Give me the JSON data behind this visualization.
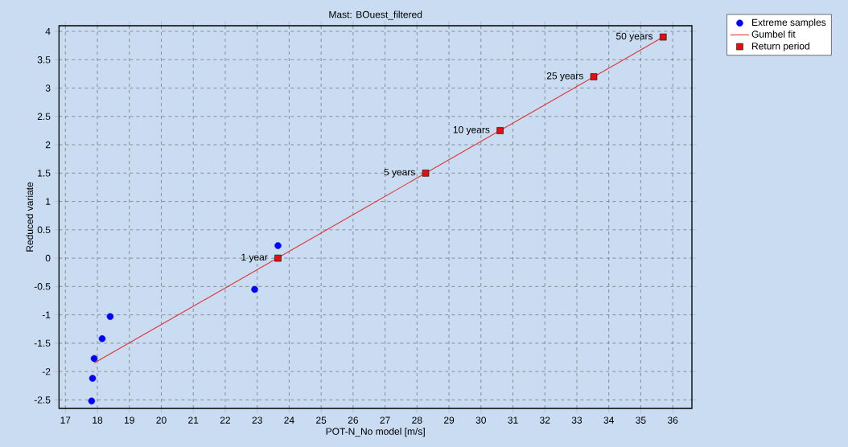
{
  "chart_data": {
    "type": "scatter",
    "title": "Mast:  BOuest_filtered",
    "xlabel": "POT-N_No model [m/s]",
    "ylabel": "Reduced variate",
    "xlim": [
      16.8,
      36.6
    ],
    "ylim": [
      -2.65,
      4.1
    ],
    "xticks": [
      17,
      18,
      19,
      20,
      21,
      22,
      23,
      24,
      25,
      26,
      27,
      28,
      29,
      30,
      31,
      32,
      33,
      34,
      35,
      36
    ],
    "yticks": [
      -2.5,
      -2,
      -1.5,
      -1,
      -0.5,
      0,
      0.5,
      1,
      1.5,
      2,
      2.5,
      3,
      3.5,
      4
    ],
    "grid": true,
    "legend": "top right",
    "series": [
      {
        "name": "Extreme samples",
        "marker": "circle",
        "color": "#0000ff",
        "x": [
          17.82,
          17.85,
          17.9,
          18.15,
          18.4,
          22.92,
          23.65
        ],
        "values": [
          -2.52,
          -2.12,
          -1.77,
          -1.42,
          -1.03,
          -0.55,
          0.22
        ]
      },
      {
        "name": "Gumbel fit",
        "type": "line",
        "marker": "none",
        "color": "#e03030",
        "x": [
          17.9,
          35.7
        ],
        "values": [
          -1.85,
          3.9
        ]
      },
      {
        "name": "Return period",
        "marker": "square",
        "color": "#e01010",
        "x": [
          23.65,
          28.27,
          30.6,
          33.53,
          35.7
        ],
        "values": [
          0,
          1.5,
          2.25,
          3.2,
          3.9
        ]
      }
    ],
    "annotations": [
      {
        "text": "1 year",
        "x": 23.65,
        "y": 0
      },
      {
        "text": "5 years",
        "x": 28.27,
        "y": 1.5
      },
      {
        "text": "10 years",
        "x": 30.6,
        "y": 2.25
      },
      {
        "text": "25 years",
        "x": 33.53,
        "y": 3.2
      },
      {
        "text": "50 years",
        "x": 35.7,
        "y": 3.9
      }
    ]
  }
}
